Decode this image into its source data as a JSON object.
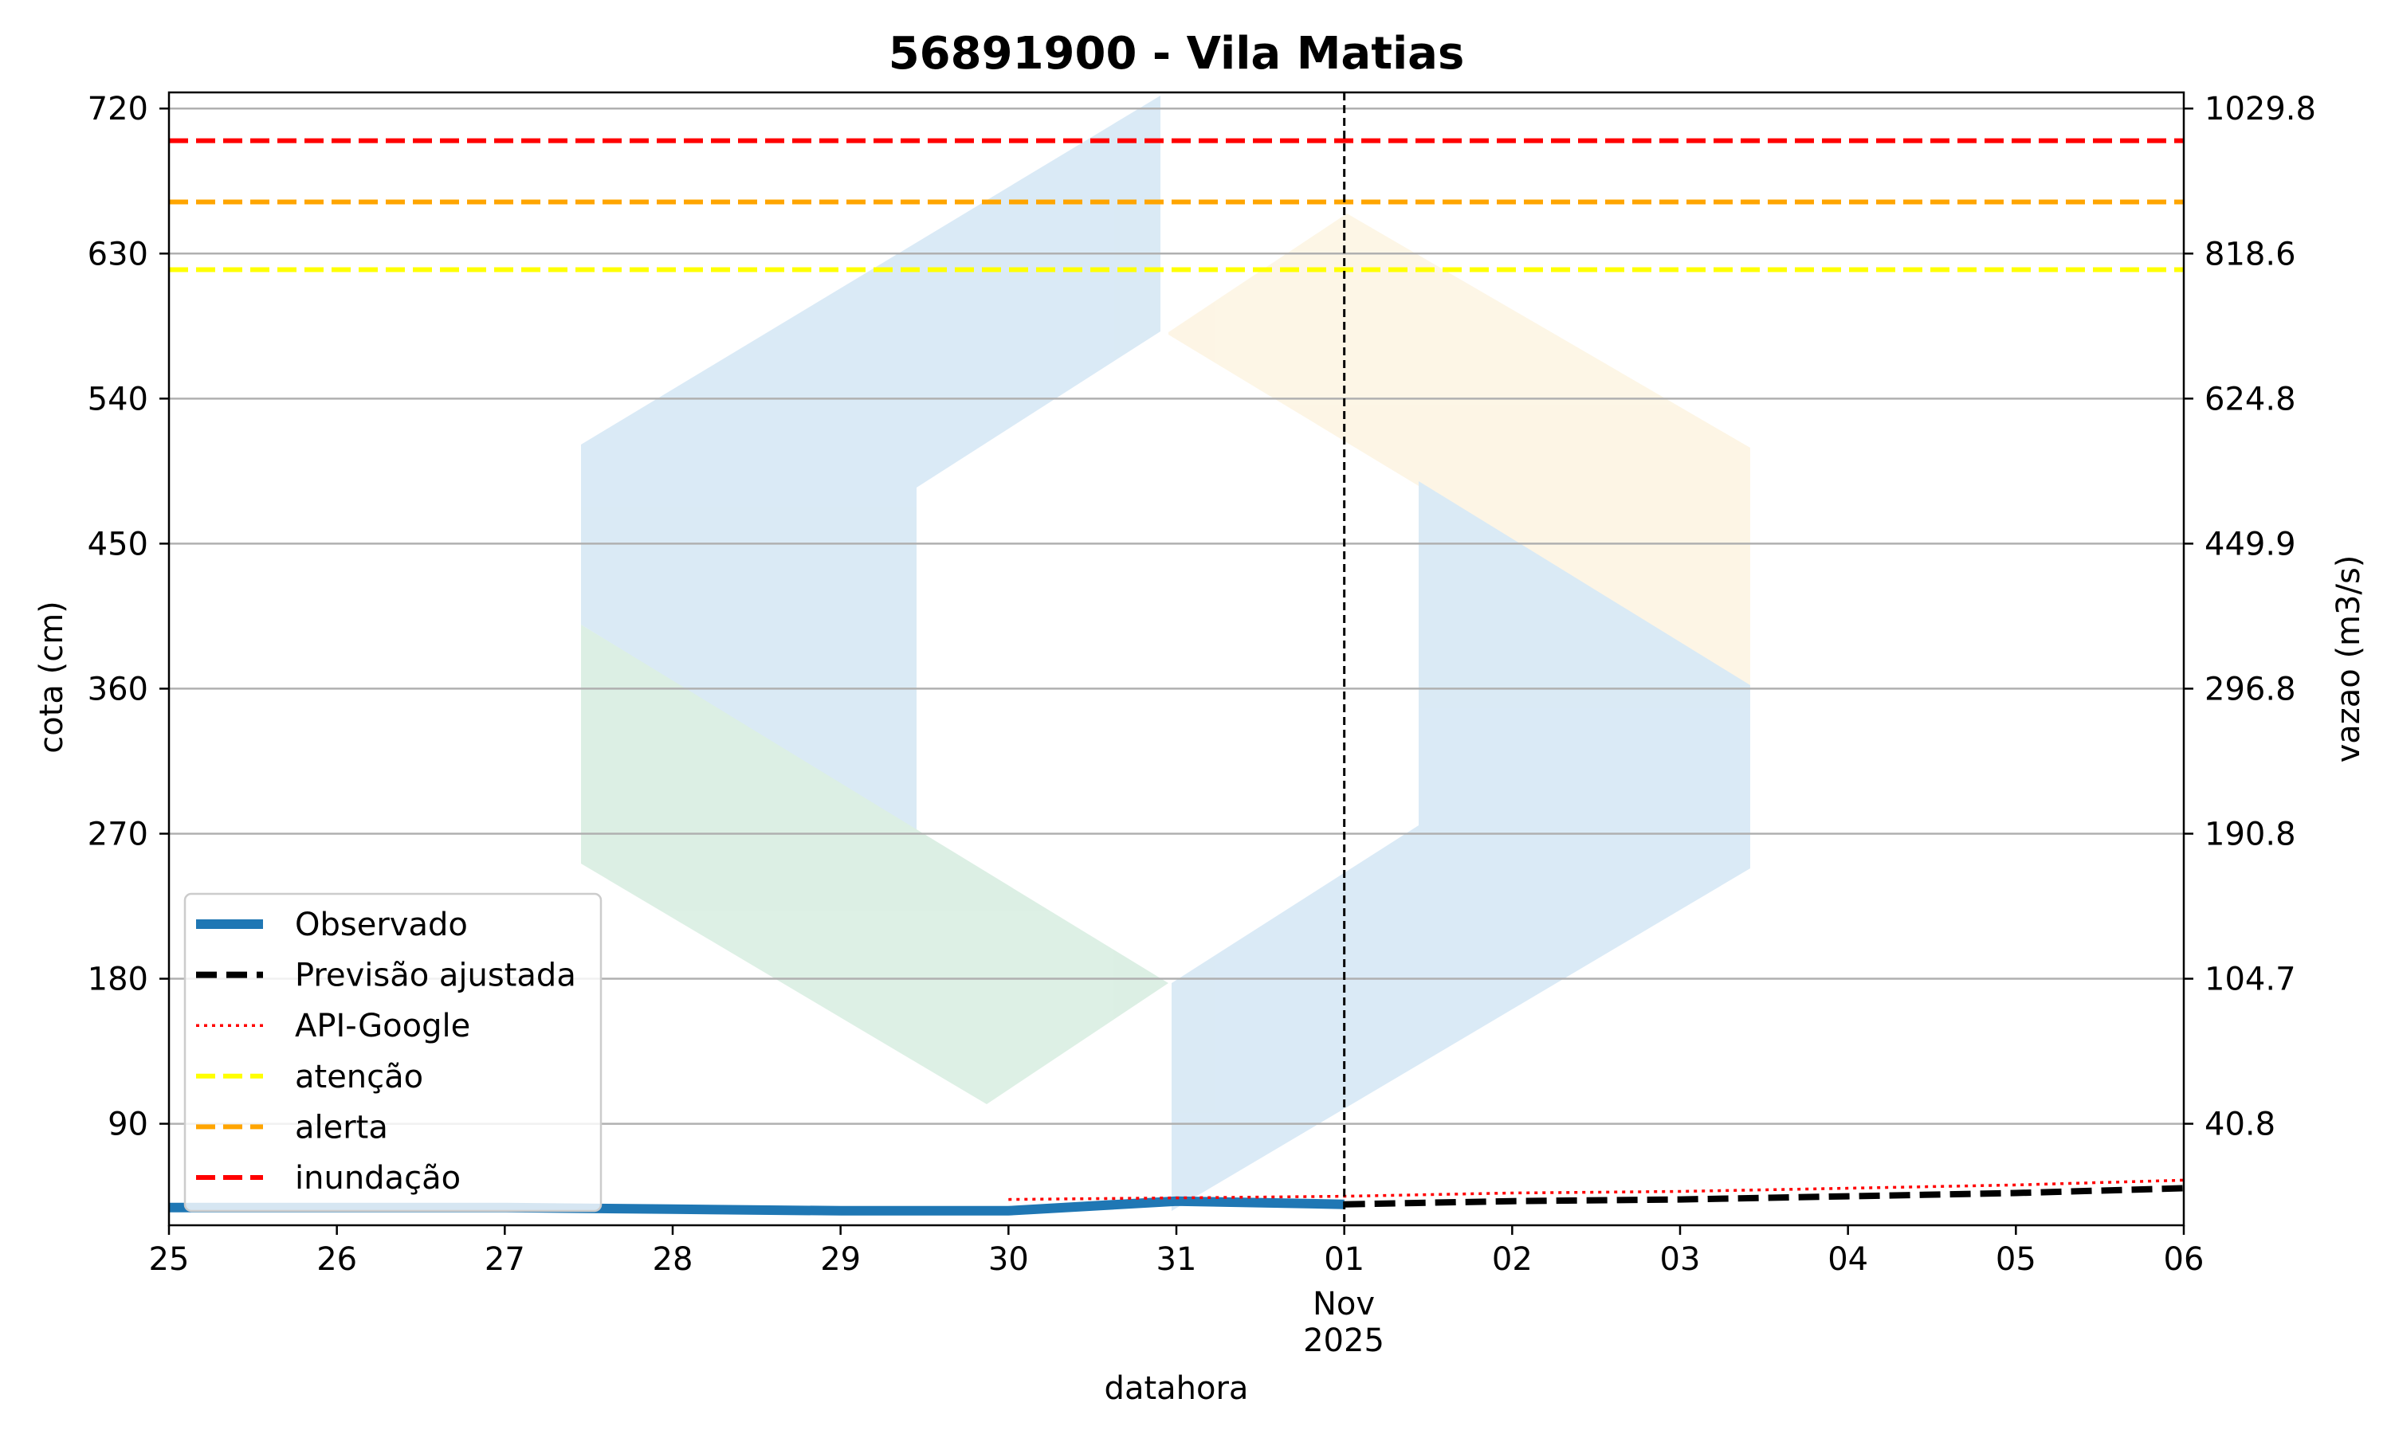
{
  "chart_data": {
    "type": "line",
    "title": "56891900 - Vila Matias",
    "xlabel": "datahora",
    "ylabel": "cota (cm)",
    "y2label": "vazao (m3/s)",
    "x_ticks": [
      "25",
      "26",
      "27",
      "28",
      "29",
      "30",
      "31",
      "01",
      "02",
      "03",
      "04",
      "05",
      "06"
    ],
    "x_tick_dates": [
      "2025-10-25",
      "2025-10-26",
      "2025-10-27",
      "2025-10-28",
      "2025-10-29",
      "2025-10-30",
      "2025-10-31",
      "2025-11-01",
      "2025-11-02",
      "2025-11-03",
      "2025-11-04",
      "2025-11-05",
      "2025-11-06"
    ],
    "x_sublabel": [
      "Nov",
      "2025"
    ],
    "xlim": [
      "2025-10-25",
      "2025-11-06"
    ],
    "ylim": [
      27,
      730
    ],
    "y_ticks": [
      90,
      180,
      270,
      360,
      450,
      540,
      630,
      720
    ],
    "y2_ticks": [
      "40.8",
      "104.7",
      "190.8",
      "296.8",
      "449.9",
      "624.8",
      "818.6",
      "1029.8"
    ],
    "vline": "2025-11-01",
    "grid": "horizontal",
    "legend_position": "lower-left",
    "thresholds": [
      {
        "name": "atenção",
        "value": 620,
        "color": "#ffff00",
        "style": "dashed"
      },
      {
        "name": "alerta",
        "value": 662,
        "color": "#ffa500",
        "style": "dashed"
      },
      {
        "name": "inundação",
        "value": 700,
        "color": "#ff0000",
        "style": "dashed"
      }
    ],
    "series": [
      {
        "name": "Observado",
        "color": "#1f77b4",
        "style": "solid",
        "points": [
          {
            "x": "2025-10-25",
            "y": 38
          },
          {
            "x": "2025-10-26",
            "y": 38
          },
          {
            "x": "2025-10-27",
            "y": 38
          },
          {
            "x": "2025-10-28",
            "y": 37
          },
          {
            "x": "2025-10-29",
            "y": 36
          },
          {
            "x": "2025-10-30",
            "y": 36
          },
          {
            "x": "2025-10-31",
            "y": 42
          },
          {
            "x": "2025-11-01",
            "y": 40
          }
        ]
      },
      {
        "name": "Previsão ajustada",
        "color": "#000000",
        "style": "dashed",
        "points": [
          {
            "x": "2025-11-01",
            "y": 40
          },
          {
            "x": "2025-11-02",
            "y": 42
          },
          {
            "x": "2025-11-03",
            "y": 43
          },
          {
            "x": "2025-11-04",
            "y": 45
          },
          {
            "x": "2025-11-05",
            "y": 47
          },
          {
            "x": "2025-11-06",
            "y": 50
          }
        ]
      },
      {
        "name": "API-Google",
        "color": "#ff0000",
        "style": "dotted",
        "points": [
          {
            "x": "2025-10-30",
            "y": 43
          },
          {
            "x": "2025-10-31",
            "y": 44
          },
          {
            "x": "2025-11-01",
            "y": 45
          },
          {
            "x": "2025-11-02",
            "y": 47
          },
          {
            "x": "2025-11-03",
            "y": 48
          },
          {
            "x": "2025-11-04",
            "y": 50
          },
          {
            "x": "2025-11-05",
            "y": 52
          },
          {
            "x": "2025-11-06",
            "y": 55
          }
        ]
      }
    ],
    "legend": [
      "Observado",
      "Previsão ajustada",
      "API-Google",
      "atenção",
      "alerta",
      "inundação"
    ]
  }
}
